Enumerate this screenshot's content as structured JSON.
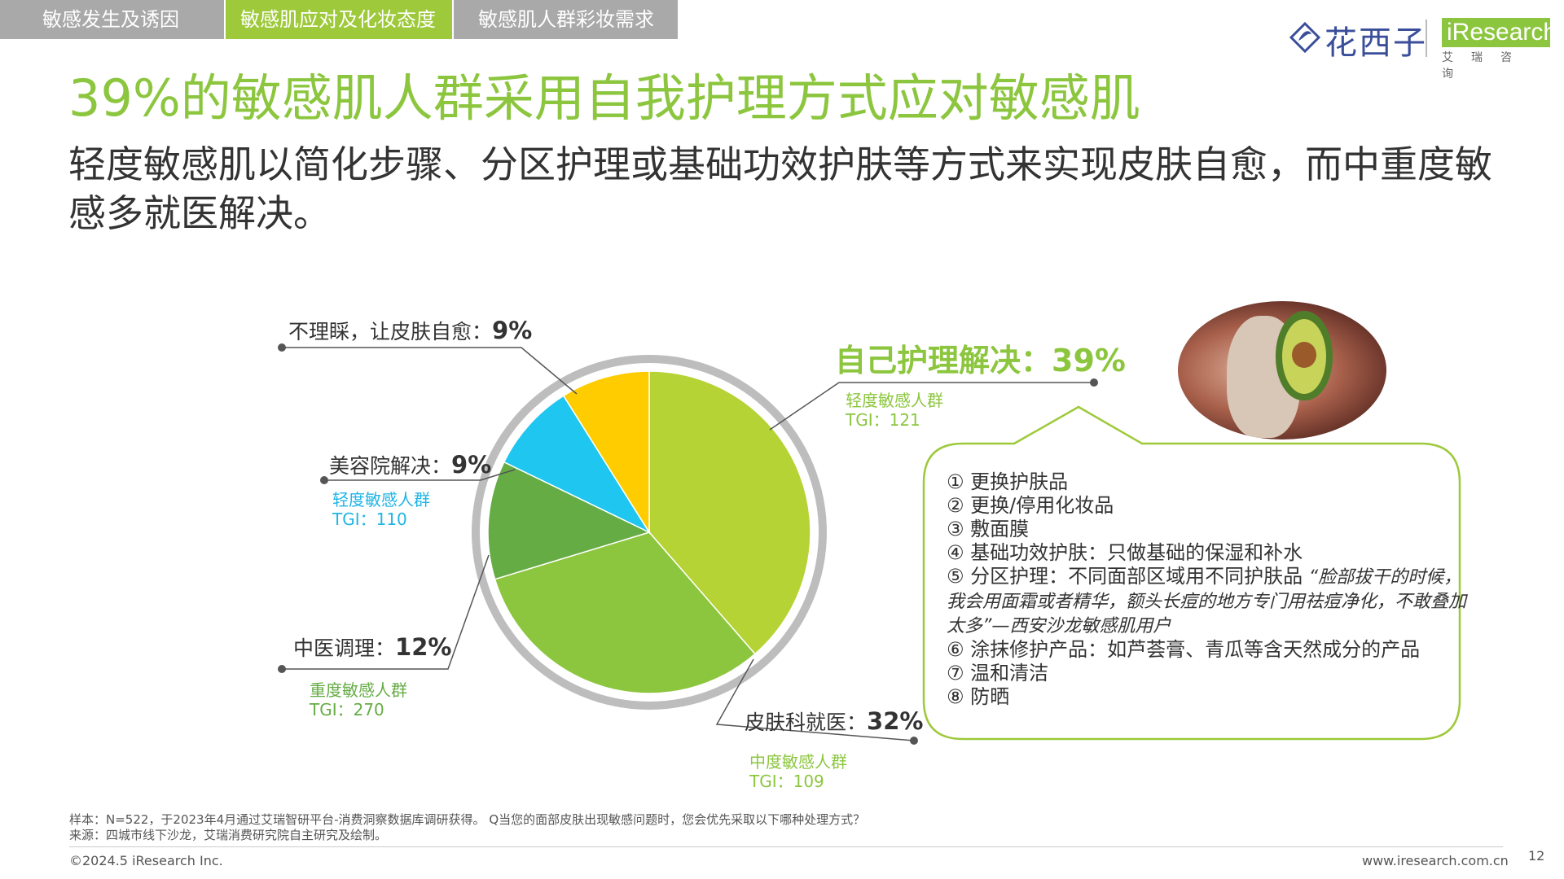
{
  "tabs": [
    {
      "label": "敏感发生及诱因",
      "active": false
    },
    {
      "label": "敏感肌应对及化妆态度",
      "active": true
    },
    {
      "label": "敏感肌人群彩妆需求",
      "active": false
    }
  ],
  "logo": {
    "brand": "花西子",
    "partner": "iResearch",
    "partner_sub": "艾瑞咨询"
  },
  "title": "39%的敏感肌人群采用自我护理方式应对敏感肌",
  "subtitle": "轻度敏感肌以简化步骤、分区护理或基础功效护肤等方式来实现皮肤自愈，而中重度敏感多就医解决。",
  "chart_data": {
    "type": "pie",
    "title": "",
    "slices": [
      {
        "label": "自己护理解决：",
        "value": 39,
        "value_label": "39%",
        "color": "#b5d334",
        "segment_name": "轻度敏感人群",
        "tgi": "TGI：121"
      },
      {
        "label": "皮肤科就医：",
        "value": 32,
        "value_label": "32%",
        "color": "#8cc63e",
        "segment_name": "中度敏感人群",
        "tgi": "TGI：109"
      },
      {
        "label": "中医调理：",
        "value": 12,
        "value_label": "12%",
        "color": "#66ac45",
        "segment_name": "重度敏感人群",
        "tgi": "TGI：270"
      },
      {
        "label": "美容院解决：",
        "value": 9,
        "value_label": "9%",
        "color": "#1fc6f0",
        "segment_name": "轻度敏感人群",
        "tgi": "TGI：110"
      },
      {
        "label": "不理睬，让皮肤自愈：",
        "value": 9,
        "value_label": "9%",
        "color": "#ffcc00"
      }
    ]
  },
  "self_care_list": [
    {
      "num": "①",
      "text": "更换护肤品"
    },
    {
      "num": "②",
      "text": "更换/停用化妆品"
    },
    {
      "num": "③",
      "text": "敷面膜"
    },
    {
      "num": "④",
      "text": "基础功效护肤：只做基础的保湿和补水"
    },
    {
      "num": "⑤",
      "text": "分区护理：不同面部区域用不同护肤品",
      "quote": "“脸部拔干的时候，我会用面霜或者精华，额头长痘的地方专门用祛痘净化，不敢叠加太多”—西安沙龙敏感肌用户"
    },
    {
      "num": "⑥",
      "text": "涂抹修护产品：如芦荟膏、青瓜等含天然成分的产品"
    },
    {
      "num": "⑦",
      "text": "温和清洁"
    },
    {
      "num": "⑧",
      "text": "防晒"
    }
  ],
  "footnote": {
    "sample": "样本：N=522，于2023年4月通过艾瑞智研平台-消费洞察数据库调研获得。 Q当您的面部皮肤出现敏感问题时，您会优先采取以下哪种处理方式？",
    "source": "来源：四城市线下沙龙，艾瑞消费研究院自主研究及绘制。"
  },
  "copyright": "©2024.5 iResearch Inc.",
  "url": "www.iresearch.com.cn",
  "page_number": "12"
}
